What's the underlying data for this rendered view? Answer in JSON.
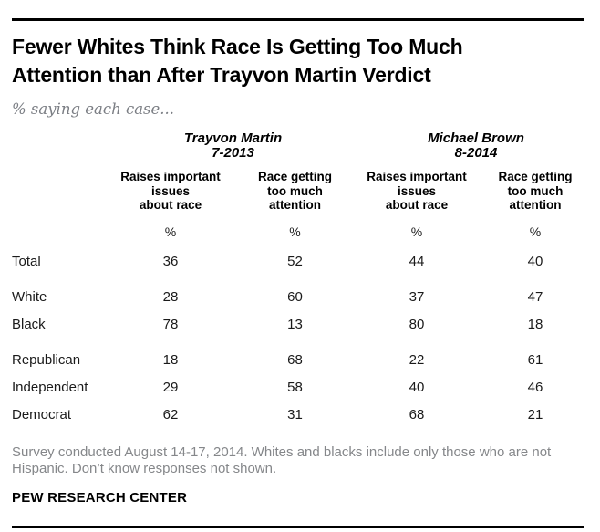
{
  "colors": {
    "title_black": "#000000",
    "subtitle_gray": "#7b7e84",
    "body_text": "#1a1a1a",
    "note_gray": "#85878a",
    "rule_black": "#000000",
    "background": "#ffffff"
  },
  "chart_data": {
    "type": "table",
    "title": "Fewer Whites Think Race Is Getting Too Much Attention than After Trayvon Martin Verdict",
    "title_lines": [
      "Fewer Whites Think Race Is Getting Too Much",
      "Attention than After Trayvon Martin Verdict"
    ],
    "subtitle": "% saying each case...",
    "column_groups": [
      {
        "label": "Trayvon Martin",
        "sublabel": "7-2013"
      },
      {
        "label": "Michael Brown",
        "sublabel": "8-2014"
      }
    ],
    "columns": [
      "Raises important\nissues\nabout race",
      "Race getting\ntoo much\nattention",
      "Raises important\nissues\nabout race",
      "Race getting\ntoo much\nattention"
    ],
    "unit_row": [
      "%",
      "%",
      "%",
      "%"
    ],
    "rows": [
      {
        "label": "Total",
        "values": [
          36,
          52,
          44,
          40
        ]
      },
      {
        "label": "White",
        "values": [
          28,
          60,
          37,
          47
        ]
      },
      {
        "label": "Black",
        "values": [
          78,
          13,
          80,
          18
        ]
      },
      {
        "label": "Republican",
        "values": [
          18,
          68,
          22,
          61
        ]
      },
      {
        "label": "Independent",
        "values": [
          29,
          58,
          40,
          46
        ]
      },
      {
        "label": "Democrat",
        "values": [
          62,
          31,
          68,
          21
        ]
      }
    ],
    "note": "Survey conducted August 14-17, 2014. Whites and blacks include only those who are not Hispanic. Don’t know responses not shown.",
    "source": "PEW RESEARCH CENTER"
  }
}
